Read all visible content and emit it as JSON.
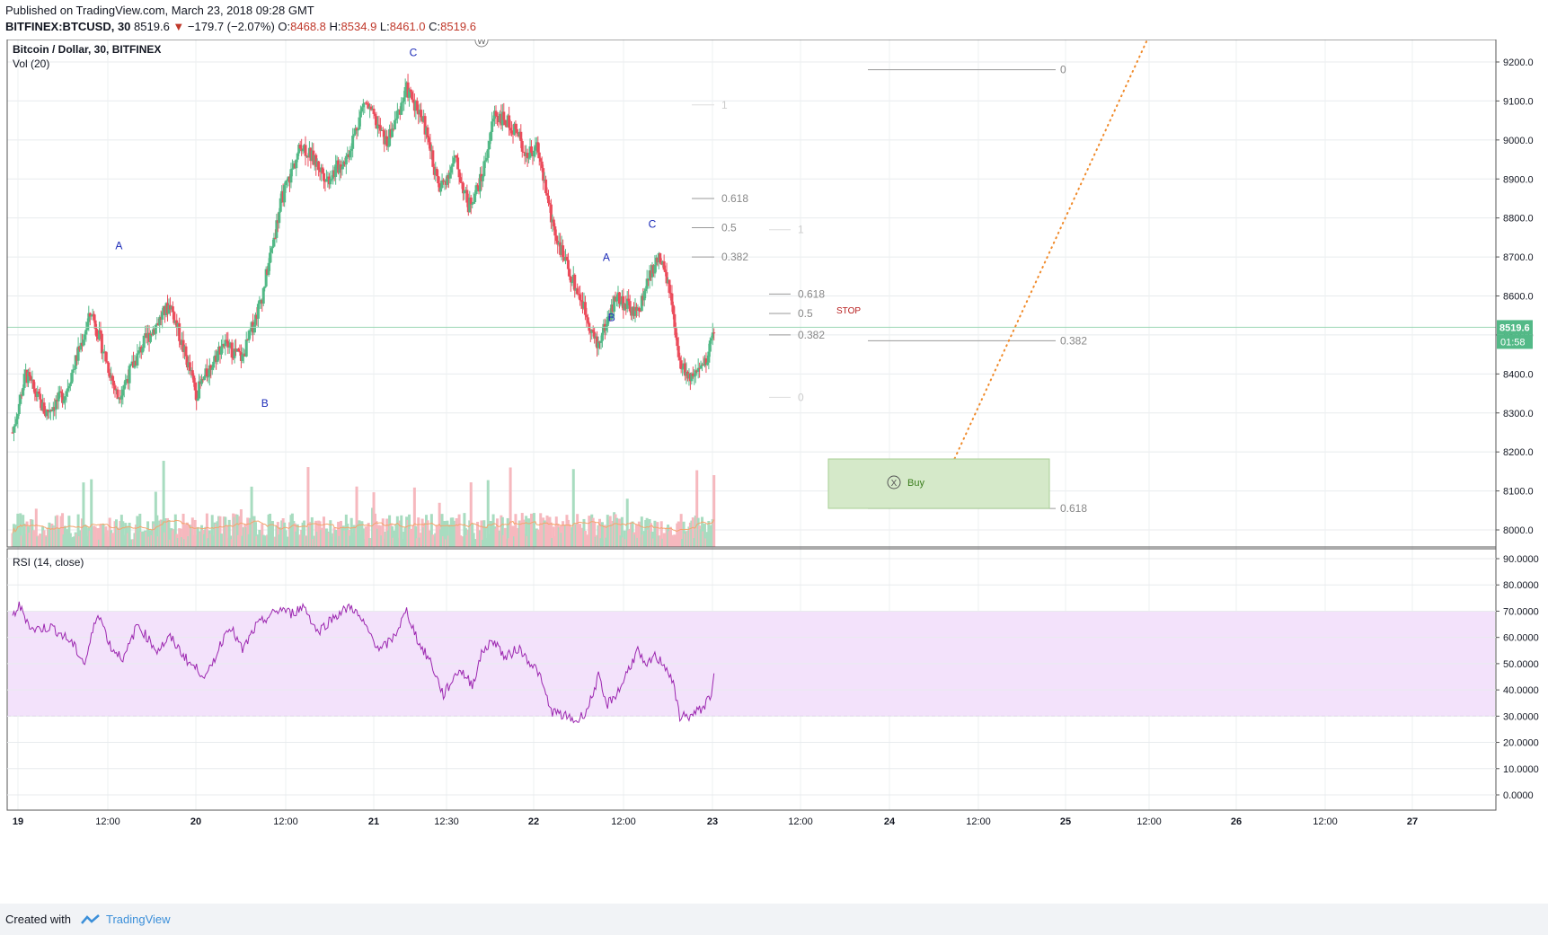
{
  "header": {
    "published": "Published on TradingView.com, March 23, 2018 09:28 GMT",
    "symbol": "BITFINEX:BTCUSD, 30",
    "price": "8519.6",
    "change_arrow": "▼",
    "change": "−179.7 (−2.07%)",
    "o_label": "O:",
    "o_value": "8468.8",
    "h_label": "H:",
    "h_value": "8534.9",
    "l_label": "L:",
    "l_value": "8461.0",
    "c_label": "C:",
    "c_value": "8519.6"
  },
  "chart_data": {
    "type": "candlestick",
    "title": "Bitcoin / Dollar, 30, BITFINEX",
    "volume_label": "Vol (20)",
    "rsi_label": "RSI (14, close)",
    "ylim": [
      7950,
      9290
    ],
    "price_ticks": [
      "9200.0",
      "9100.0",
      "9000.0",
      "8900.0",
      "8800.0",
      "8700.0",
      "8600.0",
      "8500.0",
      "8400.0",
      "8300.0",
      "8200.0",
      "8100.0",
      "8000.0"
    ],
    "rsi_ticks": [
      "90.0000",
      "80.0000",
      "70.0000",
      "60.0000",
      "50.0000",
      "40.0000",
      "30.0000",
      "20.0000",
      "10.0000",
      "0.0000"
    ],
    "rsi_band": [
      30,
      70
    ],
    "x_ticks": [
      "19",
      "12:00",
      "20",
      "12:00",
      "21",
      "12:30",
      "22",
      "12:00",
      "23",
      "12:00",
      "24",
      "12:00",
      "25",
      "12:00",
      "26",
      "12:00",
      "27"
    ],
    "current_price": "8519.6",
    "countdown": "01:58",
    "price_keypoints": [
      [
        0,
        8250
      ],
      [
        10,
        8400
      ],
      [
        25,
        8300
      ],
      [
        40,
        8350
      ],
      [
        60,
        8560
      ],
      [
        80,
        8340
      ],
      [
        100,
        8480
      ],
      [
        120,
        8580
      ],
      [
        140,
        8350
      ],
      [
        160,
        8480
      ],
      [
        175,
        8440
      ],
      [
        190,
        8600
      ],
      [
        205,
        8850
      ],
      [
        220,
        8990
      ],
      [
        240,
        8900
      ],
      [
        255,
        8960
      ],
      [
        268,
        9100
      ],
      [
        285,
        8990
      ],
      [
        300,
        9130
      ],
      [
        312,
        9060
      ],
      [
        325,
        8870
      ],
      [
        337,
        8950
      ],
      [
        347,
        8830
      ],
      [
        357,
        8900
      ],
      [
        367,
        9070
      ],
      [
        382,
        9030
      ],
      [
        392,
        8960
      ],
      [
        400,
        8980
      ],
      [
        410,
        8800
      ],
      [
        420,
        8690
      ],
      [
        433,
        8590
      ],
      [
        445,
        8470
      ],
      [
        460,
        8600
      ],
      [
        475,
        8550
      ],
      [
        485,
        8650
      ],
      [
        492,
        8700
      ],
      [
        500,
        8620
      ],
      [
        507,
        8430
      ],
      [
        518,
        8380
      ],
      [
        528,
        8430
      ],
      [
        534,
        8519.6
      ]
    ],
    "rsi_keypoints": [
      [
        0,
        68
      ],
      [
        5,
        72
      ],
      [
        15,
        63
      ],
      [
        30,
        64
      ],
      [
        45,
        58
      ],
      [
        55,
        50
      ],
      [
        65,
        70
      ],
      [
        75,
        56
      ],
      [
        85,
        52
      ],
      [
        95,
        65
      ],
      [
        110,
        55
      ],
      [
        120,
        60
      ],
      [
        135,
        50
      ],
      [
        148,
        45
      ],
      [
        158,
        57
      ],
      [
        165,
        65
      ],
      [
        175,
        55
      ],
      [
        185,
        64
      ],
      [
        195,
        68
      ],
      [
        205,
        71
      ],
      [
        212,
        69
      ],
      [
        222,
        72
      ],
      [
        232,
        62
      ],
      [
        245,
        68
      ],
      [
        258,
        72
      ],
      [
        270,
        63
      ],
      [
        280,
        55
      ],
      [
        290,
        60
      ],
      [
        300,
        70
      ],
      [
        310,
        57
      ],
      [
        318,
        51
      ],
      [
        328,
        38
      ],
      [
        340,
        48
      ],
      [
        350,
        42
      ],
      [
        358,
        55
      ],
      [
        367,
        59
      ],
      [
        375,
        52
      ],
      [
        385,
        56
      ],
      [
        400,
        47
      ],
      [
        410,
        32
      ],
      [
        420,
        30
      ],
      [
        430,
        28
      ],
      [
        438,
        33
      ],
      [
        446,
        45
      ],
      [
        452,
        34
      ],
      [
        462,
        40
      ],
      [
        468,
        47
      ],
      [
        476,
        55
      ],
      [
        482,
        48
      ],
      [
        488,
        53
      ],
      [
        496,
        50
      ],
      [
        502,
        44
      ],
      [
        508,
        30
      ],
      [
        517,
        30
      ],
      [
        527,
        34
      ],
      [
        533,
        40
      ],
      [
        535,
        52
      ]
    ]
  },
  "annotations": {
    "wave_top_circle": "W",
    "labels": [
      {
        "text": "A",
        "bar": 81,
        "price": 8720
      },
      {
        "text": "B",
        "bar": 192,
        "price": 8315
      },
      {
        "text": "C",
        "bar": 305,
        "price": 9215
      },
      {
        "text": "A",
        "bar": 452,
        "price": 8690
      },
      {
        "text": "B",
        "bar": 456,
        "price": 8535
      },
      {
        "text": "C",
        "bar": 487,
        "price": 8775
      }
    ],
    "fib_left": [
      {
        "label": "1",
        "price": 9090,
        "dim": true
      },
      {
        "label": "0.618",
        "price": 8850,
        "dim": false
      },
      {
        "label": "0.5",
        "price": 8775,
        "dim": false
      },
      {
        "label": "0.382",
        "price": 8700,
        "dim": false
      }
    ],
    "fib_mid": [
      {
        "label": "1",
        "price": 8770,
        "dim": true
      },
      {
        "label": "0.618",
        "price": 8605,
        "dim": false
      },
      {
        "label": "0.5",
        "price": 8555,
        "dim": false
      },
      {
        "label": "0.382",
        "price": 8500,
        "dim": false
      },
      {
        "label": "0",
        "price": 8340,
        "dim": true
      }
    ],
    "fib_right": [
      {
        "label": "0",
        "price": 9180
      },
      {
        "label": "0.382",
        "price": 8485
      },
      {
        "label": "0.618",
        "price": 8055
      }
    ],
    "stop_label": "STOP",
    "buy_label": "Buy",
    "buy_icon": "x-circle-icon"
  },
  "footer": {
    "created_with": "Created with",
    "brand": "TradingView"
  },
  "colors": {
    "up": "#53b987",
    "down": "#eb4d5c",
    "up_vol": "#a8dcc0",
    "down_vol": "#f6b8be",
    "rsi_line": "#9c27b0",
    "rsi_band": "#f3e2fb",
    "ma_line": "#f5a46c",
    "label_blue": "#1c2bb8",
    "buy_fill": "#cfe6c2",
    "projection": "#f08a2a",
    "price_tag": "#53b987"
  }
}
